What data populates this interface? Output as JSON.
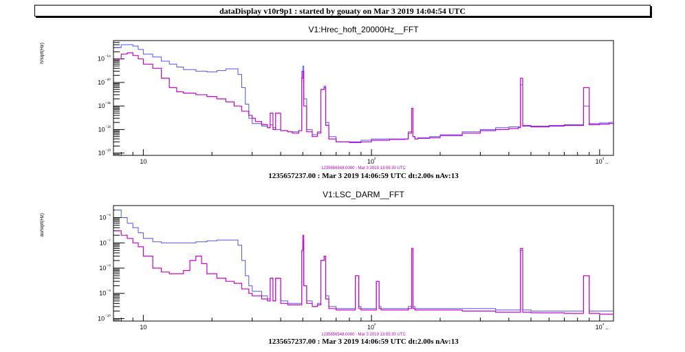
{
  "window": {
    "title": "dataDisplay v10r9p1 : started by gouaty on Mar  3 2019 14:04:54 UTC"
  },
  "chart_data": [
    {
      "type": "line",
      "title": "V1:Hrec_hoft_20000Hz__FFT",
      "ylabel": "h/sqrt(Hz)",
      "xscale": "log",
      "yscale": "log",
      "xlim": [
        7.4,
        1150
      ],
      "ylim": [
        8e-24,
        6e-19
      ],
      "x_ticks": [
        "10",
        "10²",
        "10³"
      ],
      "y_ticks": [
        "10⁻¹⁹",
        "10⁻²⁰",
        "10⁻²¹",
        "10⁻²²",
        "10⁻²³"
      ],
      "reference_caption": "1235656548.0000 : Mar  3 2019 13:55:30 UTC",
      "footer": "1235657237.00 : Mar  3 2019 14:06:59 UTC dt:2.00s nAv:13",
      "series": [
        {
          "color": "#5050ff",
          "x": [
            7.5,
            8,
            8.5,
            9,
            9.5,
            10,
            11,
            12,
            13,
            14,
            15,
            17,
            19,
            21,
            23,
            25,
            26,
            27,
            28,
            29,
            30,
            33,
            35,
            36,
            37,
            38,
            40,
            43,
            45,
            48,
            49.5,
            50,
            50.5,
            52,
            55,
            58,
            60,
            62,
            63,
            65,
            70,
            80,
            90,
            100,
            120,
            140,
            145,
            150,
            152,
            155,
            160,
            180,
            200,
            250,
            300,
            350,
            400,
            440,
            450,
            460,
            500,
            600,
            700,
            800,
            850,
            900,
            1000,
            1100,
            1150
          ],
          "y": [
            3e-19,
            4e-19,
            4e-19,
            3.5e-19,
            2.5e-19,
            1.6e-19,
            1.2e-19,
            8e-20,
            6e-20,
            4.5e-20,
            3.5e-20,
            3e-20,
            2.8e-20,
            3.2e-20,
            3.8e-20,
            3.8e-20,
            2.2e-20,
            6e-21,
            1.2e-21,
            3e-22,
            1.8e-22,
            1.4e-22,
            1.2e-22,
            1.6e-22,
            1.2e-22,
            1e-22,
            9e-23,
            8e-23,
            8e-23,
            9e-23,
            3e-20,
            5e-20,
            2e-21,
            1e-22,
            6e-23,
            8e-23,
            5e-21,
            7e-21,
            2e-22,
            5e-23,
            3e-23,
            3e-23,
            3.5e-23,
            4e-23,
            4e-23,
            4e-23,
            8e-23,
            8e-22,
            5e-23,
            4e-23,
            4.5e-23,
            5e-23,
            6e-23,
            8e-23,
            1e-22,
            1.2e-22,
            1.3e-22,
            1.3e-22,
            8e-21,
            1.5e-22,
            1.4e-22,
            1.5e-22,
            1.6e-22,
            1.6e-22,
            1e-21,
            1.8e-22,
            1.9e-22,
            2e-22,
            2.1e-22
          ]
        },
        {
          "color": "#cc00cc",
          "x": [
            7.5,
            8,
            8.5,
            9,
            9.5,
            10,
            11,
            12,
            13,
            14,
            15,
            17,
            19,
            21,
            23,
            25,
            27,
            29,
            30,
            31,
            33,
            35,
            36,
            37,
            38,
            40,
            43,
            45,
            48,
            49.5,
            50,
            50.5,
            52,
            55,
            58,
            60,
            62,
            63,
            65,
            70,
            80,
            90,
            100,
            120,
            140,
            145,
            150,
            152,
            155,
            160,
            180,
            200,
            250,
            300,
            350,
            400,
            440,
            450,
            460,
            500,
            600,
            700,
            800,
            850,
            900,
            1000,
            1100,
            1150
          ],
          "y": [
            1e-19,
            1.6e-19,
            1.8e-19,
            1.4e-19,
            1e-19,
            6e-20,
            4e-20,
            1.5e-20,
            6e-21,
            4e-21,
            3.5e-21,
            3e-21,
            2.5e-21,
            2e-21,
            1.5e-21,
            1e-21,
            6e-22,
            4e-22,
            3e-22,
            2.2e-22,
            1.6e-22,
            1.2e-22,
            5e-22,
            1e-22,
            5e-22,
            9e-23,
            8e-23,
            7e-23,
            9e-23,
            1.5e-20,
            3e-20,
            1e-21,
            8e-23,
            5e-23,
            7e-23,
            5e-21,
            6e-21,
            1.5e-22,
            4e-23,
            3e-23,
            2.8e-23,
            3e-23,
            3.5e-23,
            3.8e-23,
            4e-23,
            7e-23,
            8e-22,
            5e-23,
            4e-23,
            4.2e-23,
            4.5e-23,
            5.5e-23,
            7e-23,
            9e-23,
            1e-22,
            1.1e-22,
            1.2e-22,
            1.5e-20,
            1.4e-22,
            1.3e-22,
            1.4e-22,
            1.5e-22,
            1.5e-22,
            6e-21,
            1.6e-22,
            1.7e-22,
            1.8e-22,
            1.9e-22
          ]
        }
      ]
    },
    {
      "type": "line",
      "title": "V1:LSC_DARM__FFT",
      "ylabel": "au/sqrt(Hz)",
      "xscale": "log",
      "yscale": "log",
      "xlim": [
        7.4,
        1150
      ],
      "ylim": [
        8e-11,
        3e-06
      ],
      "x_ticks": [
        "10",
        "10²",
        "10³"
      ],
      "y_ticks": [
        "10⁻⁶",
        "10⁻⁷",
        "10⁻⁸",
        "10⁻⁹",
        "10⁻¹⁰"
      ],
      "reference_caption": "1235656548.0000 : Mar  3 2019 13:55:30 UTC",
      "footer": "1235657237.00 : Mar  3 2019 14:06:59 UTC dt:2.00s nAv:13",
      "series": [
        {
          "color": "#5050ff",
          "x": [
            7.5,
            8,
            8.5,
            9,
            9.5,
            10,
            11,
            12,
            13,
            14,
            15,
            17,
            19,
            21,
            23,
            25,
            26,
            27,
            28,
            29,
            30,
            33,
            35,
            36,
            37,
            38,
            40,
            43,
            45,
            48,
            49.5,
            50,
            50.5,
            52,
            55,
            58,
            60,
            62,
            63,
            65,
            70,
            80,
            85,
            88,
            90,
            95,
            100,
            105,
            108,
            110,
            120,
            140,
            145,
            150,
            152,
            155,
            160,
            180,
            200,
            250,
            300,
            350,
            400,
            440,
            450,
            460,
            500,
            600,
            700,
            800,
            850,
            900,
            1000,
            1100,
            1150
          ],
          "y": [
            2e-06,
            1e-06,
            6e-07,
            4e-07,
            2.5e-07,
            1.5e-07,
            1.1e-07,
            1e-07,
            1e-07,
            1e-07,
            1e-07,
            1.1e-07,
            1.2e-07,
            1.3e-07,
            1.3e-07,
            1.3e-07,
            8e-08,
            2e-08,
            5e-09,
            2e-09,
            1.2e-09,
            8e-10,
            6e-10,
            4e-09,
            5e-10,
            4e-09,
            5e-10,
            4e-10,
            4e-10,
            4e-10,
            5e-08,
            1.2e-07,
            2e-09,
            5e-10,
            3e-10,
            4e-10,
            2e-08,
            3e-08,
            8e-10,
            3e-10,
            2.5e-10,
            2.5e-10,
            5e-09,
            3e-10,
            2.5e-10,
            2.5e-10,
            2.5e-10,
            3e-09,
            3e-10,
            2.5e-10,
            2.5e-10,
            2.5e-10,
            3e-10,
            6e-08,
            3e-10,
            2.5e-10,
            2.5e-10,
            2.5e-10,
            2.5e-10,
            2.5e-10,
            2.5e-10,
            2.2e-10,
            2.2e-10,
            2.2e-10,
            5e-08,
            2.2e-10,
            2e-10,
            2e-10,
            2e-10,
            2e-10,
            5e-09,
            2e-10,
            2e-10,
            2e-10,
            2e-10
          ]
        },
        {
          "color": "#cc00cc",
          "x": [
            7.5,
            8,
            8.5,
            9,
            9.5,
            10,
            11,
            12,
            13,
            14,
            15,
            16,
            17,
            18,
            19,
            21,
            23,
            25,
            27,
            29,
            30,
            33,
            35,
            36,
            37,
            38,
            40,
            43,
            45,
            48,
            49.5,
            50,
            50.5,
            52,
            55,
            58,
            60,
            62,
            63,
            65,
            70,
            80,
            85,
            88,
            90,
            95,
            100,
            105,
            108,
            110,
            120,
            140,
            145,
            150,
            152,
            155,
            160,
            180,
            200,
            250,
            300,
            350,
            400,
            440,
            450,
            460,
            500,
            600,
            700,
            800,
            850,
            900,
            1000,
            1100,
            1150
          ],
          "y": [
            3e-07,
            2e-07,
            1.5e-07,
            1e-07,
            7e-08,
            3e-08,
            1e-08,
            7e-09,
            6e-09,
            6e-09,
            8e-09,
            2e-08,
            3e-08,
            1.5e-08,
            6e-09,
            4e-09,
            3e-09,
            2.5e-09,
            1.5e-09,
            1e-09,
            8e-10,
            6e-10,
            5e-10,
            4e-09,
            5e-10,
            4e-09,
            4e-10,
            3.5e-10,
            3.5e-10,
            3.5e-10,
            5e-08,
            2e-07,
            2e-09,
            4e-10,
            3e-10,
            3.5e-10,
            2e-08,
            3e-08,
            6e-10,
            2.5e-10,
            2.2e-10,
            2.2e-10,
            5e-09,
            2.5e-10,
            2.2e-10,
            2.2e-10,
            2.2e-10,
            3e-09,
            2.5e-10,
            2.2e-10,
            2.2e-10,
            2.2e-10,
            2.5e-10,
            6e-08,
            2.5e-10,
            2.2e-10,
            2.2e-10,
            2.2e-10,
            2.2e-10,
            2e-10,
            2e-10,
            1.8e-10,
            1.8e-10,
            1.8e-10,
            6e-08,
            1.8e-10,
            1.7e-10,
            1.7e-10,
            1.6e-10,
            1.6e-10,
            5e-09,
            1.6e-10,
            1.5e-10,
            1.5e-10,
            1.5e-10
          ]
        }
      ]
    }
  ]
}
